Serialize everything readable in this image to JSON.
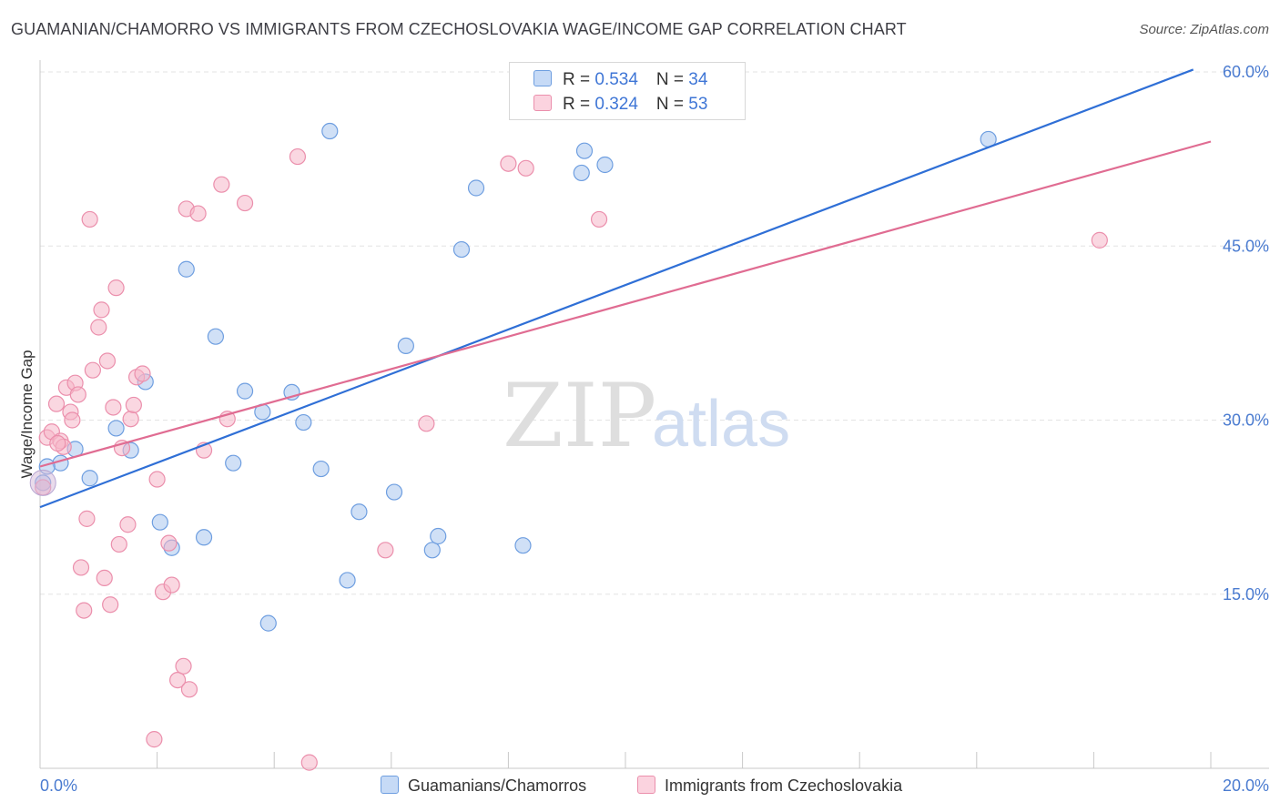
{
  "title": "GUAMANIAN/CHAMORRO VS IMMIGRANTS FROM CZECHOSLOVAKIA WAGE/INCOME GAP CORRELATION CHART",
  "source": "Source: ZipAtlas.com",
  "watermark": {
    "zip": "ZIP",
    "atlas": "atlas"
  },
  "legend_top": [
    {
      "r_label": "R = ",
      "r_value": "0.534",
      "n_label": "N = ",
      "n_value": "34",
      "color": "#a9c7ef"
    },
    {
      "r_label": "R = ",
      "r_value": "0.324",
      "n_label": "N = ",
      "n_value": "53",
      "color": "#f6b6c8"
    }
  ],
  "legend_bottom": [
    {
      "label": "Guamanians/Chamorros",
      "color": "#a9c7ef"
    },
    {
      "label": "Immigrants from Czechoslovakia",
      "color": "#f6b6c8"
    }
  ],
  "chart_data": {
    "type": "scatter",
    "title": "GUAMANIAN/CHAMORRO VS IMMIGRANTS FROM CZECHOSLOVAKIA WAGE/INCOME GAP CORRELATION CHART",
    "xlabel": "",
    "ylabel": "Wage/Income Gap",
    "xlim": [
      0,
      20
    ],
    "ylim": [
      0,
      60
    ],
    "x_ticks": [
      "0.0%",
      "20.0%"
    ],
    "y_ticks": [
      {
        "value": 15,
        "label": "15.0%"
      },
      {
        "value": 30,
        "label": "30.0%"
      },
      {
        "value": 45,
        "label": "45.0%"
      },
      {
        "value": 60,
        "label": "60.0%"
      }
    ],
    "grid": true,
    "series": [
      {
        "name": "Guamanians/Chamorros",
        "color": "#a9c7ef",
        "stroke": "#6e9ee0",
        "line_color": "#2f6fd6",
        "trend": {
          "x0": 0.0,
          "y0": 22.5,
          "x1": 19.7,
          "y1": 60.2
        },
        "points": [
          [
            0.05,
            24.6
          ],
          [
            0.35,
            26.3
          ],
          [
            0.6,
            27.5
          ],
          [
            0.85,
            25.0
          ],
          [
            1.3,
            29.3
          ],
          [
            1.55,
            27.4
          ],
          [
            1.8,
            33.3
          ],
          [
            2.05,
            21.2
          ],
          [
            2.25,
            19.0
          ],
          [
            2.5,
            43.0
          ],
          [
            2.8,
            19.9
          ],
          [
            3.0,
            37.2
          ],
          [
            3.3,
            26.3
          ],
          [
            3.5,
            32.5
          ],
          [
            3.8,
            30.7
          ],
          [
            3.9,
            12.5
          ],
          [
            4.3,
            32.4
          ],
          [
            4.5,
            29.8
          ],
          [
            4.8,
            25.8
          ],
          [
            4.95,
            54.9
          ],
          [
            5.25,
            16.2
          ],
          [
            5.45,
            22.1
          ],
          [
            6.05,
            23.8
          ],
          [
            6.25,
            36.4
          ],
          [
            6.7,
            18.8
          ],
          [
            6.8,
            20.0
          ],
          [
            7.2,
            44.7
          ],
          [
            7.45,
            50.0
          ],
          [
            8.25,
            19.2
          ],
          [
            9.25,
            51.3
          ],
          [
            9.3,
            53.2
          ],
          [
            9.65,
            52.0
          ],
          [
            16.2,
            54.2
          ],
          [
            0.12,
            26.0
          ]
        ]
      },
      {
        "name": "Immigrants from Czechoslovakia",
        "color": "#f6b6c8",
        "stroke": "#eb8fac",
        "line_color": "#e06c92",
        "trend": {
          "x0": 0.0,
          "y0": 26.0,
          "x1": 20.0,
          "y1": 54.0
        },
        "points": [
          [
            0.05,
            24.2
          ],
          [
            0.12,
            28.5
          ],
          [
            0.2,
            29.0
          ],
          [
            0.28,
            31.4
          ],
          [
            0.35,
            28.2
          ],
          [
            0.4,
            27.7
          ],
          [
            0.45,
            32.8
          ],
          [
            0.52,
            30.7
          ],
          [
            0.55,
            30.0
          ],
          [
            0.6,
            33.2
          ],
          [
            0.65,
            32.2
          ],
          [
            0.7,
            17.3
          ],
          [
            0.75,
            13.6
          ],
          [
            0.8,
            21.5
          ],
          [
            0.85,
            47.3
          ],
          [
            0.9,
            34.3
          ],
          [
            1.0,
            38.0
          ],
          [
            1.05,
            39.5
          ],
          [
            1.1,
            16.4
          ],
          [
            1.15,
            35.1
          ],
          [
            1.2,
            14.1
          ],
          [
            1.25,
            31.1
          ],
          [
            1.3,
            41.4
          ],
          [
            1.35,
            19.3
          ],
          [
            1.4,
            27.6
          ],
          [
            1.5,
            21.0
          ],
          [
            1.55,
            30.1
          ],
          [
            1.6,
            31.3
          ],
          [
            1.65,
            33.7
          ],
          [
            1.75,
            34.0
          ],
          [
            1.95,
            2.5
          ],
          [
            2.0,
            24.9
          ],
          [
            2.1,
            15.2
          ],
          [
            2.2,
            19.4
          ],
          [
            2.25,
            15.8
          ],
          [
            2.35,
            7.6
          ],
          [
            2.45,
            8.8
          ],
          [
            2.5,
            48.2
          ],
          [
            2.55,
            6.8
          ],
          [
            2.7,
            47.8
          ],
          [
            2.8,
            27.4
          ],
          [
            3.1,
            50.3
          ],
          [
            3.2,
            30.1
          ],
          [
            3.5,
            48.7
          ],
          [
            4.4,
            52.7
          ],
          [
            4.6,
            0.5
          ],
          [
            5.9,
            18.8
          ],
          [
            6.6,
            29.7
          ],
          [
            8.0,
            52.1
          ],
          [
            8.3,
            51.7
          ],
          [
            9.55,
            47.3
          ],
          [
            18.1,
            45.5
          ],
          [
            0.3,
            28.0
          ]
        ]
      }
    ]
  }
}
